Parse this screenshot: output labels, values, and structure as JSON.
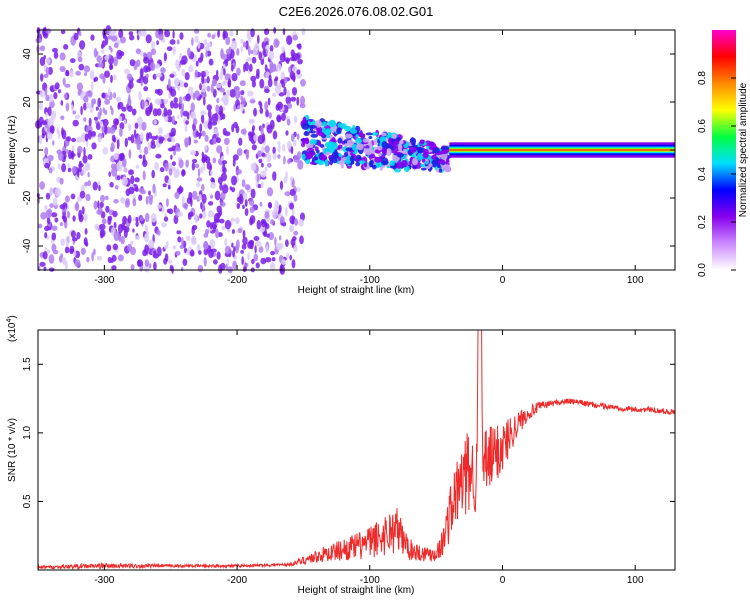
{
  "title": "C2E6.2026.076.08.02.G01",
  "chart_data": [
    {
      "type": "heatmap",
      "title": "C2E6.2026.076.08.02.G01",
      "xlabel": "Height of straight line (km)",
      "ylabel": "Frequency (Hz)",
      "xlim": [
        -350,
        130
      ],
      "ylim": [
        -50,
        50
      ],
      "xticks": [
        -300,
        -200,
        -100,
        0,
        100
      ],
      "yticks": [
        -40,
        -20,
        0,
        20,
        40
      ],
      "colorbar": {
        "label": "Normalized spectral amplitude",
        "range": [
          0.0,
          1.0
        ],
        "ticks": [
          "0.0",
          "0.2",
          "0.4",
          "0.6",
          "0.8"
        ],
        "colors": [
          "#ffffff",
          "#cc88ff",
          "#8800ee",
          "#0000ff",
          "#00e0ff",
          "#00ff40",
          "#ffff00",
          "#ff8800",
          "#ff0000",
          "#ff00cc"
        ]
      },
      "regions": [
        {
          "name": "noise",
          "x_range": [
            -350,
            -150
          ],
          "freq_range": [
            -50,
            50
          ],
          "amplitude": 0.1
        },
        {
          "name": "transition",
          "x_range": [
            -150,
            -40
          ],
          "freq_center": 0,
          "freq_spread": 10,
          "amplitude": 0.35
        },
        {
          "name": "tone",
          "x_range": [
            -40,
            130
          ],
          "freq_center": 0,
          "freq_spread": 2,
          "amplitude": 0.95
        }
      ]
    },
    {
      "type": "line",
      "xlabel": "Height of straight line (km)",
      "ylabel": "SNR (10 * v/v)",
      "scale_label": "(x10",
      "scale_exp": "4",
      "xlim": [
        -350,
        130
      ],
      "ylim": [
        0,
        1.75
      ],
      "xticks": [
        -300,
        -200,
        -100,
        0,
        100
      ],
      "yticks": [
        0.5,
        1.0,
        1.5
      ],
      "ytick_labels": [
        "0.5",
        "1.0",
        "1.5"
      ],
      "series": [
        {
          "name": "SNR",
          "color": "#ee2a2a",
          "x": [
            -350,
            -300,
            -250,
            -200,
            -160,
            -140,
            -120,
            -110,
            -100,
            -90,
            -80,
            -70,
            -60,
            -50,
            -45,
            -40,
            -35,
            -30,
            -25,
            -20,
            -17,
            -15,
            -10,
            0,
            10,
            20,
            30,
            40,
            50,
            60,
            70,
            80,
            90,
            100,
            110,
            120,
            130
          ],
          "y": [
            0.02,
            0.03,
            0.03,
            0.03,
            0.04,
            0.1,
            0.15,
            0.17,
            0.2,
            0.25,
            0.3,
            0.15,
            0.12,
            0.12,
            0.2,
            0.4,
            0.55,
            0.65,
            0.72,
            0.7,
            1.75,
            0.75,
            0.8,
            0.9,
            1.05,
            1.15,
            1.2,
            1.22,
            1.23,
            1.22,
            1.2,
            1.19,
            1.18,
            1.17,
            1.17,
            1.16,
            1.15
          ],
          "noise": [
            0.01,
            0.02,
            0.01,
            0.01,
            0.01,
            0.05,
            0.08,
            0.1,
            0.12,
            0.15,
            0.18,
            0.08,
            0.06,
            0.06,
            0.1,
            0.2,
            0.25,
            0.3,
            0.3,
            0.3,
            0.1,
            0.3,
            0.25,
            0.2,
            0.1,
            0.05,
            0.03,
            0.02,
            0.02,
            0.02,
            0.02,
            0.02,
            0.02,
            0.02,
            0.02,
            0.02,
            0.02
          ]
        }
      ]
    }
  ]
}
